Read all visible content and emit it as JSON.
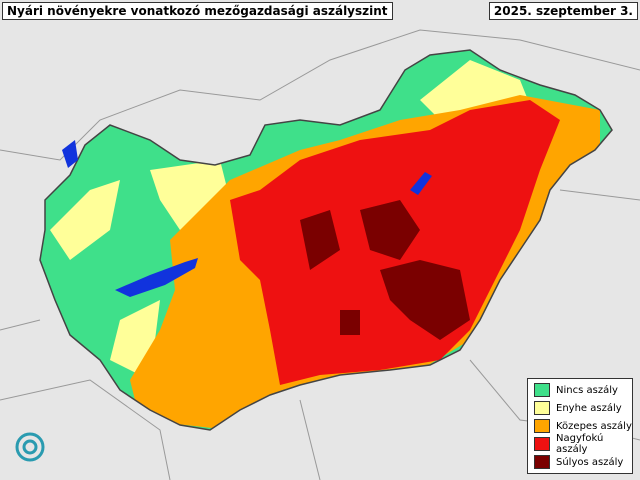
{
  "header": {
    "title": "Nyári növényekre vonatkozó mezőgazdasági aszályszint",
    "date": "2025. szeptember 3."
  },
  "legend": {
    "items": [
      {
        "label": "Nincs aszály",
        "color": "#3fe08a"
      },
      {
        "label": "Enyhe aszály",
        "color": "#ffff99"
      },
      {
        "label": "Közepes aszály",
        "color": "#ffa500"
      },
      {
        "label": "Nagyfokú aszály",
        "color": "#ee1111"
      },
      {
        "label": "Súlyos aszály",
        "color": "#7a0000"
      }
    ]
  }
}
